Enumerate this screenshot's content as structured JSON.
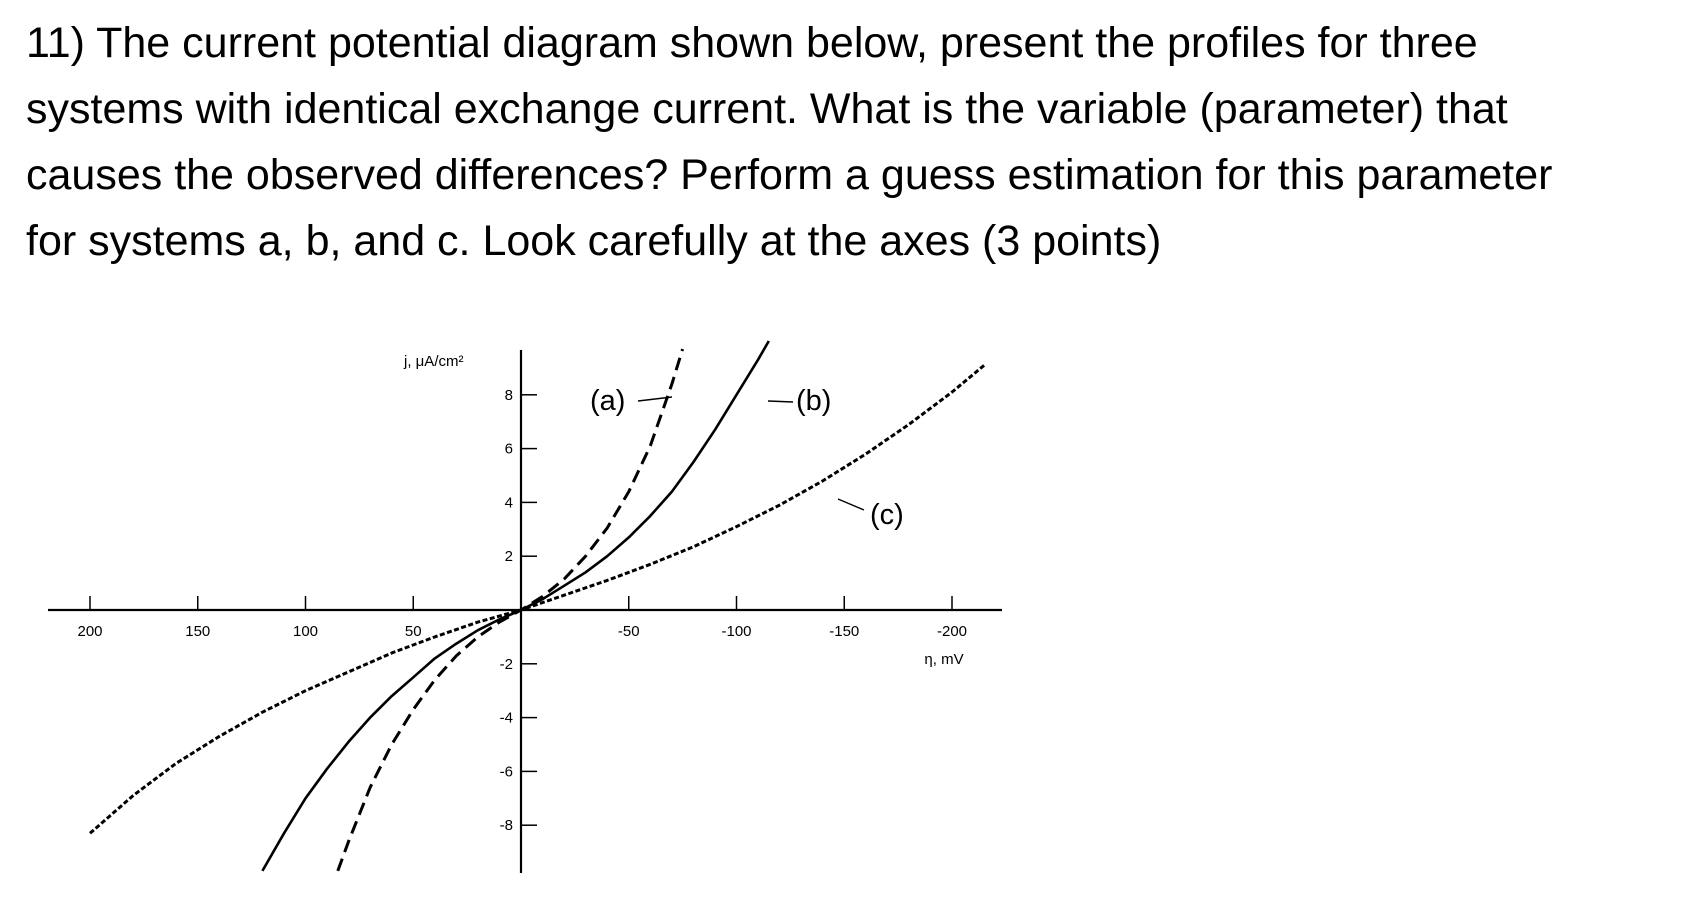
{
  "question": {
    "lines": [
      "11) The current potential diagram shown below, present the profiles for three",
      "systems with identical exchange current. What is the variable (parameter) that",
      "causes the observed differences? Perform a guess estimation for this parameter",
      "for systems a, b, and c. Look carefully at the axes (3 points)"
    ]
  },
  "chart_data": {
    "type": "line",
    "xlabel": "η, mV",
    "ylabel": "j, μA/cm²",
    "x_reversed": true,
    "xlim": [
      200,
      -200
    ],
    "ylim": [
      -9.5,
      9.5
    ],
    "x_ticks": [
      200,
      150,
      100,
      50,
      -50,
      -100,
      -150,
      -200
    ],
    "x_tick_labels": [
      "200",
      "150",
      "100",
      "50",
      "-50",
      "-100",
      "-150",
      "-200"
    ],
    "y_ticks": [
      8,
      6,
      4,
      2,
      -2,
      -4,
      -6,
      -8
    ],
    "y_tick_labels": [
      "8",
      "6",
      "4",
      "2",
      "-2",
      "-4",
      "-6",
      "-8"
    ],
    "grid": false,
    "legend": "none (curves labelled directly)",
    "series": [
      {
        "name": "(a)",
        "style": "dashed",
        "eta": [
          85,
          80,
          70,
          60,
          50,
          40,
          30,
          20,
          10,
          0,
          -10,
          -20,
          -30,
          -40,
          -50,
          -60,
          -70,
          -75
        ],
        "j": [
          -9.7,
          -8.6,
          -6.6,
          -5.0,
          -3.7,
          -2.6,
          -1.7,
          -1.0,
          -0.45,
          0,
          0.5,
          1.15,
          2.0,
          3.05,
          4.4,
          6.1,
          8.4,
          9.7
        ]
      },
      {
        "name": "(b)",
        "style": "solid",
        "eta": [
          120,
          110,
          100,
          90,
          80,
          70,
          60,
          50,
          40,
          30,
          20,
          10,
          0,
          -10,
          -20,
          -30,
          -40,
          -50,
          -60,
          -70,
          -80,
          -90,
          -100,
          -110,
          -115
        ],
        "j": [
          -9.7,
          -8.3,
          -7.0,
          -5.9,
          -4.9,
          -4.0,
          -3.2,
          -2.5,
          -1.8,
          -1.25,
          -0.75,
          -0.35,
          0,
          0.4,
          0.9,
          1.4,
          2.0,
          2.7,
          3.5,
          4.4,
          5.5,
          6.7,
          8.0,
          9.3,
          10.0
        ]
      },
      {
        "name": "(c)",
        "style": "dotted",
        "eta": [
          200,
          180,
          160,
          140,
          120,
          100,
          80,
          60,
          40,
          20,
          0,
          -20,
          -40,
          -60,
          -80,
          -100,
          -120,
          -140,
          -160,
          -180,
          -200,
          -215
        ],
        "j": [
          -8.3,
          -6.9,
          -5.7,
          -4.7,
          -3.8,
          -3.0,
          -2.3,
          -1.6,
          -1.0,
          -0.45,
          0,
          0.55,
          1.1,
          1.7,
          2.35,
          3.1,
          3.9,
          4.8,
          5.8,
          6.9,
          8.1,
          9.1
        ]
      }
    ],
    "annotations": [
      {
        "text": "(a)",
        "series": "(a)"
      },
      {
        "text": "(b)",
        "series": "(b)"
      },
      {
        "text": "(c)",
        "series": "(c)"
      }
    ]
  }
}
